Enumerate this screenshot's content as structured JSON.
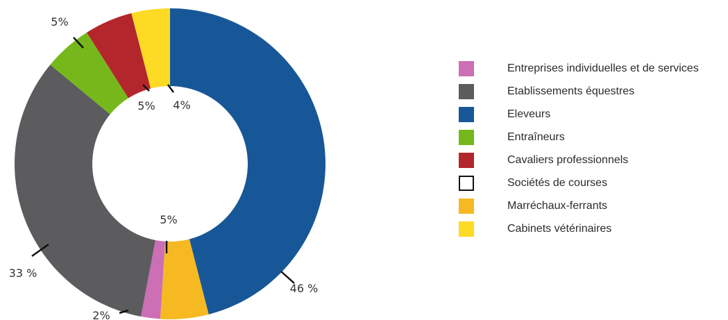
{
  "chart_data": {
    "type": "donut",
    "title": "",
    "slices": [
      {
        "name": "Eleveurs",
        "value": 46,
        "label": "46 %",
        "color": "#175797"
      },
      {
        "name": "Marréchaux-ferrants",
        "value": 5,
        "label": "5%",
        "color": "#f6b921"
      },
      {
        "name": "Entreprises individuelles et de services",
        "value": 2,
        "label": "2%",
        "color": "#cc6fb4"
      },
      {
        "name": "Etablissements équestres",
        "value": 33,
        "label": "33 %",
        "color": "#5c5c5e"
      },
      {
        "name": "Entraîneurs",
        "value": 5,
        "label": "5%",
        "color": "#76b81b"
      },
      {
        "name": "Cavaliers professionnels",
        "value": 5,
        "label": "5%",
        "color": "#b3262c"
      },
      {
        "name": "Cabinets vétérinaires",
        "value": 4,
        "label": "4%",
        "color": "#fdda24"
      }
    ],
    "legend": [
      {
        "label": "Entreprises individuelles et de services",
        "color": "#cc6fb4"
      },
      {
        "label": "Etablissements équestres",
        "color": "#5c5c5e"
      },
      {
        "label": "Eleveurs",
        "color": "#175797"
      },
      {
        "label": "Entraîneurs",
        "color": "#76b81b"
      },
      {
        "label": "Cavaliers professionnels",
        "color": "#b3262c"
      },
      {
        "label": "Sociétés de courses",
        "color": "#ffffff",
        "border": "#111111"
      },
      {
        "label": "Marréchaux-ferrants",
        "color": "#f6b921"
      },
      {
        "label": "Cabinets vétérinaires",
        "color": "#fdda24"
      }
    ],
    "legend_position": "right"
  }
}
